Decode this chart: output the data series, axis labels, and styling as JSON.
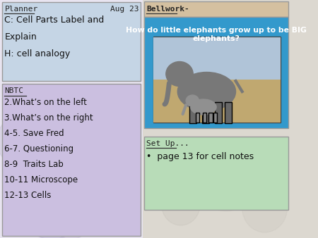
{
  "bg_color": "#dcd8d0",
  "left_bg": "#e8e4f0",
  "planner_bg": "#c5d5e5",
  "nbtc_bg": "#cbbfe0",
  "bellwork_header_bg": "#d4c0a0",
  "bellwork_body_bg": "#3399cc",
  "setup_bg": "#b8dcb8",
  "right_bg": "#dcd8d0",
  "planner_title": "Planner",
  "planner_date": "Aug 23",
  "planner_lines": [
    "C: Cell Parts Label and",
    "Explain",
    "H: cell analogy"
  ],
  "nbtc_title": "NBTC",
  "nbtc_lines": [
    "2.What’s on the left",
    "3.What’s on the right",
    "4-5. Save Fred",
    "6-7. Questioning",
    "8-9  Traits Lab",
    "10-11 Microscope",
    "12-13 Cells"
  ],
  "bellwork_title": "Bellwork-",
  "bellwork_question": "How do little elephants grow up to be BIG\nelephants?",
  "setup_title": "Set Up...",
  "setup_line": "•  page 13 for cell notes"
}
